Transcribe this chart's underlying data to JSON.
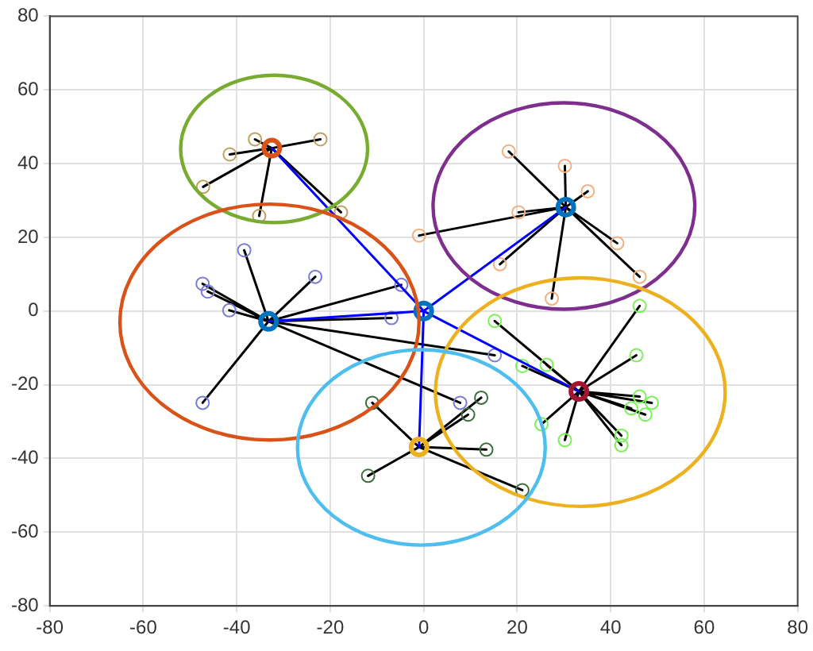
{
  "chart_data": {
    "type": "scatter",
    "xlim": [
      -80,
      80
    ],
    "ylim": [
      -80,
      80
    ],
    "xticks": [
      -80,
      -60,
      -40,
      -20,
      0,
      20,
      40,
      60,
      80
    ],
    "yticks": [
      -80,
      -60,
      -40,
      -20,
      0,
      20,
      40,
      60,
      80
    ],
    "grid": true,
    "legend": false,
    "series": [
      {
        "type": "line",
        "marker": "none",
        "color": "#000000",
        "x": [
          -32.5,
          -36.1,
          -32.5,
          -41.5,
          -32.5,
          -47.2,
          -32.5,
          -35.2,
          -32.5,
          -22.1,
          -32.5,
          -17.7
        ],
        "values": [
          44.2,
          46.6,
          44.2,
          42.5,
          44.2,
          33.7,
          44.2,
          25.8,
          44.2,
          46.6,
          44.2,
          26.8
        ]
      },
      {
        "type": "line",
        "marker": "none",
        "color": "#000000",
        "x": [
          -33.2,
          -38.4,
          -33.2,
          -47.3,
          -33.2,
          -46.2,
          -33.2,
          -41.6,
          -33.2,
          -23.2,
          -33.2,
          -47.3,
          -33.2,
          -4.8,
          -33.2,
          -6.9,
          -33.2,
          15.2,
          -33.2,
          7.8
        ],
        "values": [
          -2.8,
          16.5,
          -2.8,
          7.4,
          -2.8,
          5.3,
          -2.8,
          0.2,
          -2.8,
          9.3,
          -2.8,
          -24.9,
          -2.8,
          7.1,
          -2.8,
          -1.9,
          -2.8,
          -12,
          -2.8,
          -24.9
        ]
      },
      {
        "type": "line",
        "marker": "none",
        "color": "#000000",
        "x": [
          30.4,
          18.2,
          30.4,
          30.2,
          30.4,
          35.1,
          30.4,
          20.3,
          30.4,
          -1,
          30.4,
          41.4,
          30.4,
          16.3,
          30.4,
          46.2,
          30.4,
          27.4
        ],
        "values": [
          28.2,
          43.3,
          28.2,
          39.4,
          28.2,
          32.5,
          28.2,
          26.8,
          28.2,
          20.5,
          28.2,
          18.4,
          28.2,
          12.7,
          28.2,
          9.3,
          28.2,
          3.4
        ]
      },
      {
        "type": "line",
        "marker": "none",
        "color": "#000000",
        "x": [
          -1,
          -11,
          -1,
          -11.9,
          -1,
          12.3,
          -1,
          9.5,
          -1,
          13.4,
          -1,
          21.1
        ],
        "values": [
          -36.9,
          -24.9,
          -36.9,
          -44.7,
          -36.9,
          -23.5,
          -36.9,
          -28.1,
          -36.9,
          -37.6,
          -36.9,
          -48.6
        ]
      },
      {
        "type": "line",
        "marker": "none",
        "color": "#000000",
        "x": [
          33.2,
          46.2,
          33.2,
          15.2,
          33.2,
          45.5,
          33.2,
          21.1,
          33.2,
          26.3,
          33.2,
          46.2,
          33.2,
          48.8,
          33.2,
          44.4,
          33.2,
          47.4,
          33.2,
          25.2,
          33.2,
          30.2,
          33.2,
          42.3,
          33.2,
          42.3
        ],
        "values": [
          -21.8,
          1.4,
          -21.8,
          -2.7,
          -21.8,
          -12,
          -21.8,
          -14.9,
          -21.8,
          -14.6,
          -21.8,
          -23.2,
          -21.8,
          -24.9,
          -21.8,
          -26.4,
          -21.8,
          -28.1,
          -21.8,
          -30.7,
          -21.8,
          -35,
          -21.8,
          -33.8,
          -21.8,
          -36.4
        ]
      },
      {
        "type": "scatter",
        "marker": "circle",
        "color": "#c0a060",
        "x": [
          -36.1,
          -41.5,
          -47.2,
          -35.2,
          -22.1,
          -17.7
        ],
        "values": [
          46.6,
          42.5,
          33.7,
          25.8,
          46.6,
          26.8
        ]
      },
      {
        "type": "scatter",
        "marker": "circle",
        "color": "#7b7bd6",
        "x": [
          -38.4,
          -47.3,
          -46.2,
          -41.6,
          -23.2,
          -47.3,
          -4.8,
          -6.9,
          15.2,
          7.8
        ],
        "values": [
          16.5,
          7.4,
          5.3,
          0.2,
          9.3,
          -24.9,
          7.1,
          -1.9,
          -12,
          -24.9
        ]
      },
      {
        "type": "scatter",
        "marker": "circle",
        "color": "#f0b080",
        "x": [
          18.2,
          30.2,
          35.1,
          20.3,
          -1,
          41.4,
          16.3,
          46.2,
          27.4
        ],
        "values": [
          43.3,
          39.4,
          32.5,
          26.8,
          20.5,
          18.4,
          12.7,
          9.3,
          3.4
        ]
      },
      {
        "type": "scatter",
        "marker": "circle",
        "color": "#3c6e3c",
        "x": [
          -11,
          -11.9,
          12.3,
          9.5,
          13.4,
          21.1
        ],
        "values": [
          -24.9,
          -44.7,
          -23.5,
          -28.1,
          -37.6,
          -48.6
        ]
      },
      {
        "type": "scatter",
        "marker": "circle",
        "color": "#7cf05a",
        "x": [
          46.2,
          15.2,
          45.5,
          21.1,
          26.3,
          46.2,
          48.8,
          44.4,
          47.4,
          25.2,
          30.2,
          42.3,
          42.3
        ],
        "values": [
          1.4,
          -2.7,
          -12,
          -14.9,
          -14.6,
          -23.2,
          -24.9,
          -26.4,
          -28.1,
          -30.7,
          -35,
          -33.8,
          -36.4
        ]
      },
      {
        "type": "line",
        "marker": "none",
        "color": "#0000ff",
        "x": [
          -32.5,
          0,
          30.4,
          0,
          -33.2,
          0,
          -1,
          0,
          33.2
        ],
        "values": [
          44.2,
          0,
          28.2,
          0,
          -2.8,
          0,
          -36.9,
          0,
          -21.8
        ]
      },
      {
        "type": "scatter",
        "marker": "circle",
        "colors": [
          "#0072bd",
          "#d95319",
          "#0072bd",
          "#0072bd",
          "#edb120",
          "#a2142f"
        ],
        "x": [
          0,
          -32.5,
          30.4,
          -33.2,
          -1,
          33.2
        ],
        "values": [
          0,
          44.2,
          28.2,
          -2.8,
          -36.9,
          -21.8
        ]
      }
    ]
  }
}
